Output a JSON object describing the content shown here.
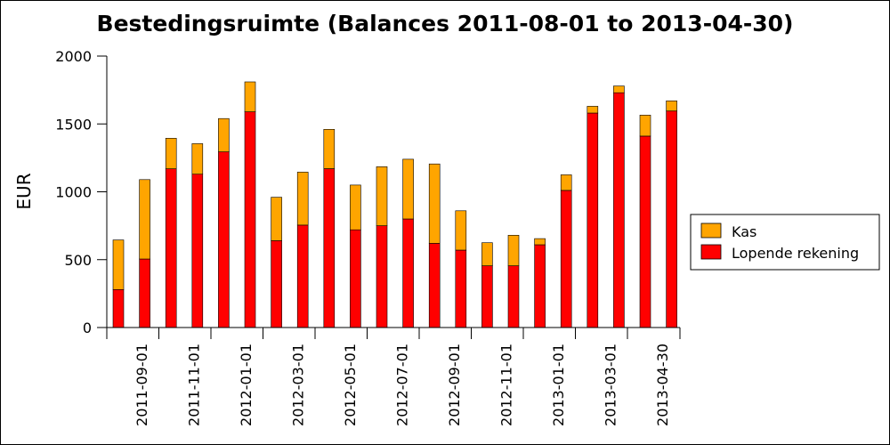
{
  "chart_data": {
    "type": "bar",
    "stacked": true,
    "title": "Bestedingsruimte (Balances 2011-08-01 to 2013-04-30)",
    "xlabel": "",
    "ylabel": "EUR",
    "ylim": [
      0,
      2000
    ],
    "yticks": [
      "0",
      "500",
      "1000",
      "1500",
      "2000"
    ],
    "xtick_labels": [
      "2011-09-01",
      "2011-11-01",
      "2012-01-01",
      "2012-03-01",
      "2012-05-01",
      "2012-07-01",
      "2012-09-01",
      "2012-11-01",
      "2013-01-01",
      "2013-03-01",
      "2013-04-30"
    ],
    "legend_position": "right",
    "grid": false,
    "series": [
      {
        "name": "Lopende rekening",
        "color": "#ff0000",
        "values": [
          280,
          505,
          1170,
          1130,
          1295,
          1590,
          640,
          755,
          1170,
          720,
          750,
          800,
          620,
          570,
          455,
          455,
          610,
          1010,
          1580,
          1730,
          1410,
          1595
        ]
      },
      {
        "name": "Kas",
        "color": "#ffa500",
        "values": [
          365,
          585,
          225,
          225,
          245,
          220,
          320,
          390,
          290,
          330,
          435,
          440,
          585,
          290,
          170,
          225,
          45,
          115,
          50,
          50,
          155,
          75
        ]
      }
    ]
  }
}
